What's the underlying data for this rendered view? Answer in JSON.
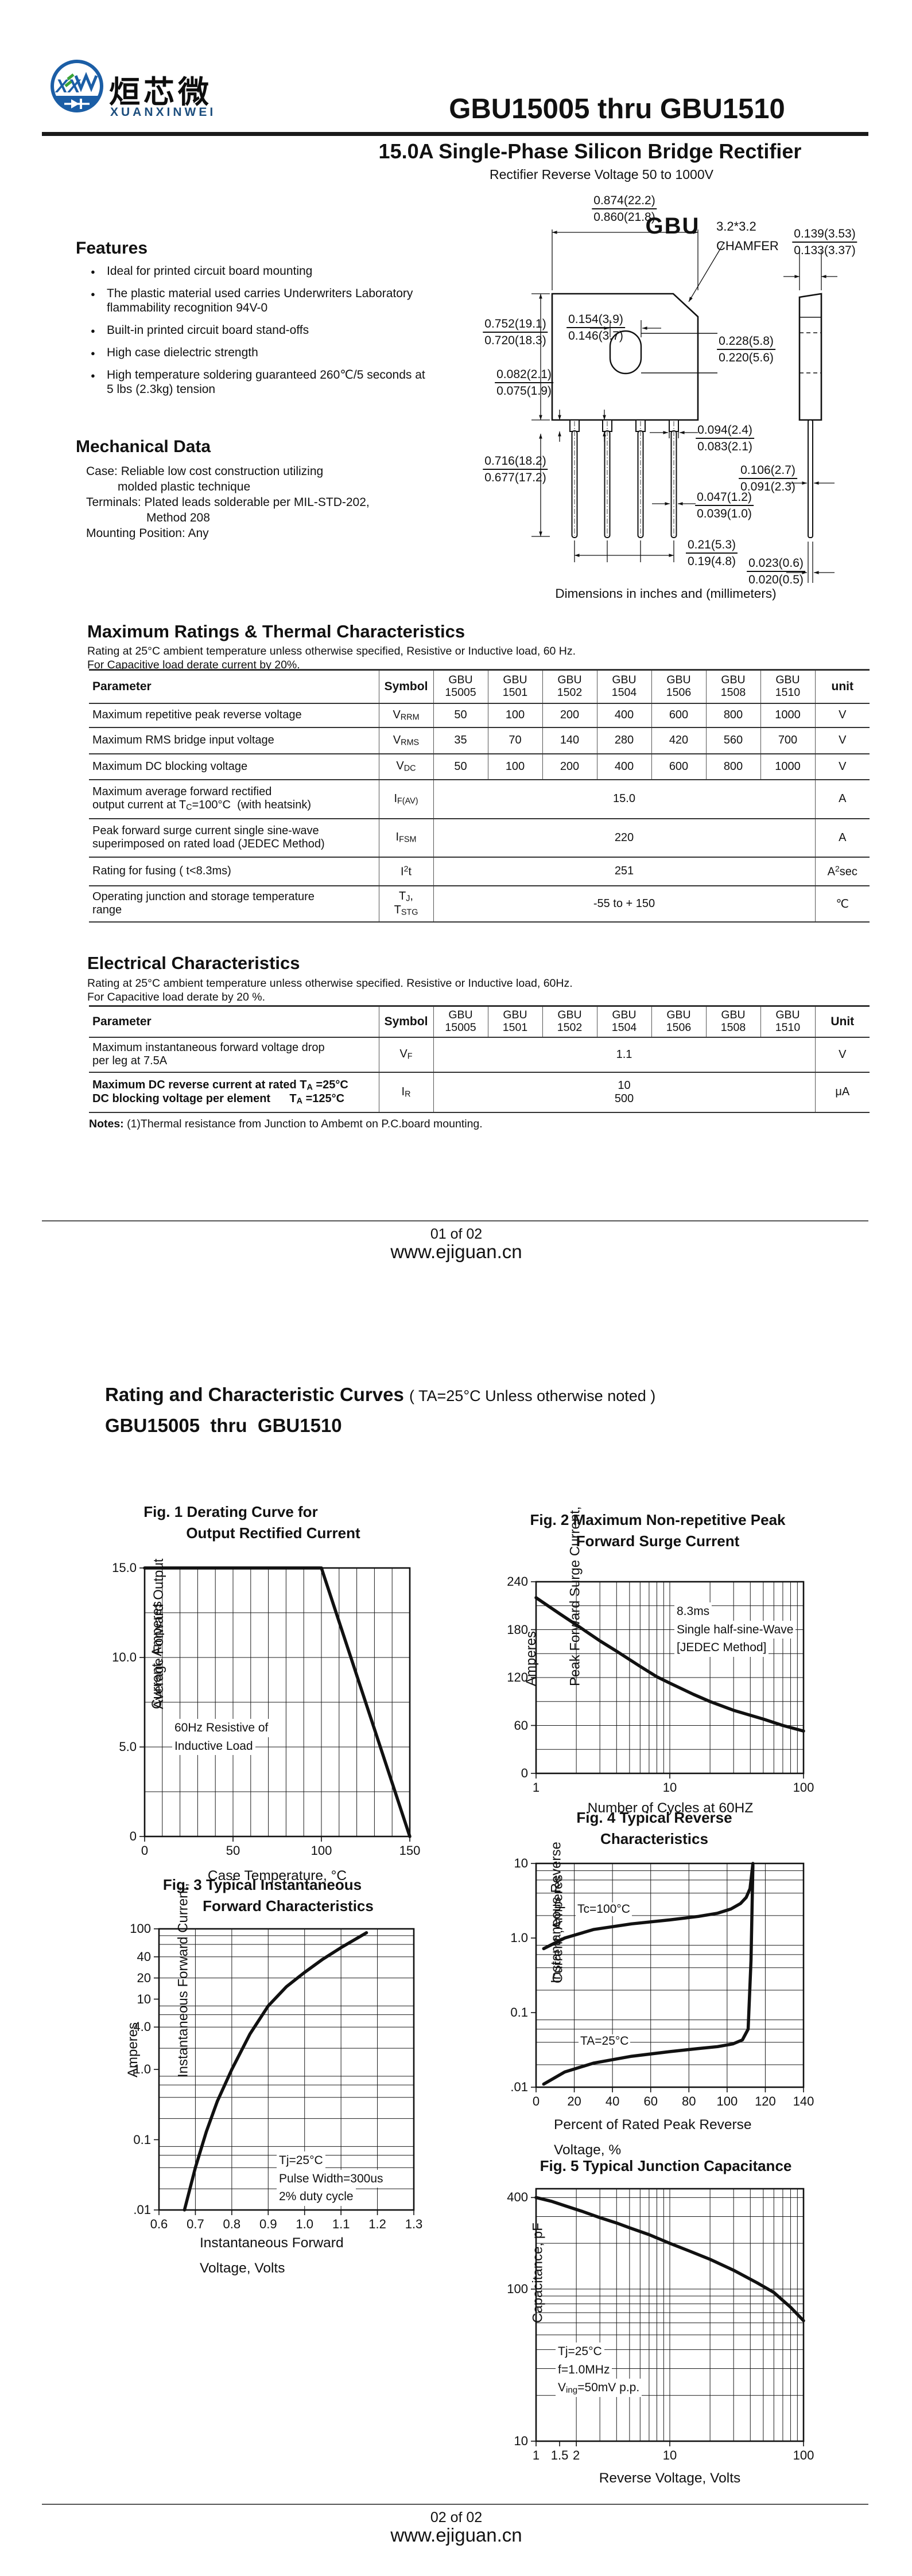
{
  "header": {
    "brand_cn": "烜芯微",
    "brand_en": "XUANXINWEI",
    "part_range": "GBU15005 thru GBU1510",
    "product_title": "15.0A Single-Phase Silicon Bridge Rectifier",
    "product_subtitle": "Rectifier Reverse Voltage 50 to 1000V",
    "logo_blue": "#1b5ea6",
    "logo_green": "#3aa337"
  },
  "features": {
    "heading": "Features",
    "items": [
      "Ideal for printed circuit  board mounting",
      "The plastic material used carries Underwriters Laboratory flammability recognition 94V-0",
      "Built-in printed circuit board stand-offs",
      "High case dielectric strength",
      "High temperature soldering guaranteed 260℃/5 seconds at 5 lbs (2.3kg) tension"
    ]
  },
  "mechanical": {
    "heading": "Mechanical Data",
    "lines": [
      "Case: Reliable low cost construction utilizing",
      "molded plastic technique",
      "Terminals: Plated leads solderable per MIL-STD-202,",
      "Method 208",
      "Mounting Position: Any"
    ]
  },
  "package": {
    "name": "GBU",
    "caption": "Dimensions in inches and (millimeters)",
    "chamfer_line1": "3.2*3.2",
    "chamfer_line2": "CHAMFER",
    "dims": [
      {
        "id": "width",
        "top": "0.874(22.2)",
        "bottom": "0.860(21.8)"
      },
      {
        "id": "side_w",
        "top": "0.139(3.53)",
        "bottom": "0.133(3.37)"
      },
      {
        "id": "hole_x",
        "top": "0.154(3.9)",
        "bottom": "0.146(3.7)"
      },
      {
        "id": "body_h",
        "top": "0.752(19.1)",
        "bottom": "0.720(18.3)"
      },
      {
        "id": "hole_h",
        "top": "0.228(5.8)",
        "bottom": "0.220(5.6)"
      },
      {
        "id": "standoff",
        "top": "0.082(2.1)",
        "bottom": "0.075(1.9)"
      },
      {
        "id": "lead_len",
        "top": "0.716(18.2)",
        "bottom": "0.677(17.2)"
      },
      {
        "id": "shoulder_w",
        "top": "0.094(2.4)",
        "bottom": "0.083(2.1)"
      },
      {
        "id": "side_t",
        "top": "0.106(2.7)",
        "bottom": "0.091(2.3)"
      },
      {
        "id": "lead_w",
        "top": "0.047(1.2)",
        "bottom": "0.039(1.0)"
      },
      {
        "id": "pitch",
        "top": "0.21(5.3)",
        "bottom": "0.19(4.8)"
      },
      {
        "id": "tab_t",
        "top": "0.023(0.6)",
        "bottom": "0.020(0.5)"
      }
    ]
  },
  "max_ratings": {
    "heading": "Maximum Ratings & Thermal Characteristics",
    "note1": "Rating at 25°C ambient temperature unless otherwise specified, Resistive or Inductive load, 60 Hz.",
    "note2": "For Capacitive load derate current by 20%.",
    "param_header": "Parameter",
    "symbol_header": "Symbol",
    "unit_header": "unit",
    "model_prefix": "GBU",
    "models": [
      "15005",
      "1501",
      "1502",
      "1504",
      "1506",
      "1508",
      "1510"
    ],
    "rows": [
      {
        "param": "Maximum repetitive peak reverse voltage",
        "symbol": "V_{RRM}",
        "values": [
          "50",
          "100",
          "200",
          "400",
          "600",
          "800",
          "1000"
        ],
        "unit": "V"
      },
      {
        "param": "Maximum RMS bridge input voltage",
        "symbol": "V_{RMS}",
        "values": [
          "35",
          "70",
          "140",
          "280",
          "420",
          "560",
          "700"
        ],
        "unit": "V"
      },
      {
        "param": "Maximum DC blocking voltage",
        "symbol": "V_{DC}",
        "values": [
          "50",
          "100",
          "200",
          "400",
          "600",
          "800",
          "1000"
        ],
        "unit": "V"
      },
      {
        "param": "Maximum average forward rectified\noutput current at T_{C}=100°C  (with heatsink)",
        "symbol": "I_{F(AV)}",
        "span": "15.0",
        "unit": "A"
      },
      {
        "param": "Peak forward surge current single sine-wave\nsuperimposed on rated load (JEDEC Method)",
        "symbol": "I_{FSM}",
        "span": "220",
        "unit": "A"
      },
      {
        "param": "Rating for fusing ( t<8.3ms)",
        "symbol": "I^{2}t",
        "span": "251",
        "unit": "A^{2}sec"
      },
      {
        "param": "Operating junction and storage temperature\nrange",
        "symbol": "T_{J},\nT_{STG}",
        "span": "-55 to + 150",
        "unit": "℃"
      }
    ]
  },
  "electrical": {
    "heading": "Electrical Characteristics",
    "note1": "Rating at 25°C ambient temperature unless otherwise specified. Resistive or Inductive load, 60Hz.",
    "note2": "For Capacitive load derate by 20 %.",
    "param_header": "Parameter",
    "symbol_header": "Symbol",
    "unit_header": "Unit",
    "model_prefix": "GBU",
    "models": [
      "15005",
      "1501",
      "1502",
      "1504",
      "1506",
      "1508",
      "1510"
    ],
    "rows": [
      {
        "param": "Maximum instantaneous forward voltage drop\nper leg at 7.5A",
        "symbol": "V_{F}",
        "span": "1.1",
        "unit": "V"
      },
      {
        "param": "Maximum DC reverse current at rated T_{A} =25°C\nDC blocking voltage per element      T_{A} =125°C",
        "bold": true,
        "symbol": "I_{R}",
        "span": "10\n500",
        "unit": "μA"
      }
    ],
    "notes_prefix": "Notes:",
    "notes_text": " (1)Thermal resistance from Junction to Ambemt on P.C.board mounting."
  },
  "footer1": {
    "page": "01 of 02",
    "site": "www.ejiguan.cn"
  },
  "footer2": {
    "page": "02 of 02",
    "site": "www.ejiguan.cn"
  },
  "page2": {
    "heading": "Rating and Characteristic Curves",
    "heading_note": "( TA=25°C Unless otherwise noted )",
    "subheading": "GBU15005  thru  GBU1510"
  },
  "chart_data": [
    {
      "type": "line",
      "title1": "Fig. 1 Derating Curve for",
      "title2": "Output Rectified Current",
      "ylabel": [
        "Average Forward Output",
        "Current, Amperes"
      ],
      "xlabel": [
        "Case Temperature, °C"
      ],
      "xlim": [
        0,
        150
      ],
      "ylim": [
        0,
        15
      ],
      "xlog": false,
      "ylog": false,
      "xticks": [
        {
          "v": 0,
          "l": "0"
        },
        {
          "v": 50,
          "l": "50"
        },
        {
          "v": 100,
          "l": "100"
        },
        {
          "v": 150,
          "l": "150"
        }
      ],
      "yticks": [
        {
          "v": 0,
          "l": "0"
        },
        {
          "v": 5,
          "l": "5.0"
        },
        {
          "v": 10,
          "l": "10.0"
        },
        {
          "v": 15,
          "l": "15.0"
        }
      ],
      "annotation": [
        "60Hz Resistive of",
        "Inductive Load"
      ],
      "series": [
        {
          "name": "derating",
          "points": [
            [
              0,
              15
            ],
            [
              100,
              15
            ],
            [
              150,
              0
            ]
          ]
        }
      ]
    },
    {
      "type": "line",
      "title1": "Fig. 2 Maximum Non-repetitive Peak",
      "title2": "Forward Surge Current",
      "ylabel": [
        "Peak Forward Surge Current,",
        "Amperes"
      ],
      "xlabel": [
        "Number of Cycles at 60HZ"
      ],
      "xlim": [
        1,
        100
      ],
      "ylim": [
        0,
        240
      ],
      "xlog": true,
      "ylog": false,
      "xticks": [
        {
          "v": 1,
          "l": "1"
        },
        {
          "v": 10,
          "l": "10"
        },
        {
          "v": 100,
          "l": "100"
        }
      ],
      "yticks": [
        {
          "v": 0,
          "l": "0"
        },
        {
          "v": 60,
          "l": "60"
        },
        {
          "v": 120,
          "l": "120"
        },
        {
          "v": 180,
          "l": "180"
        },
        {
          "v": 240,
          "l": "240"
        }
      ],
      "annotation": [
        "8.3ms",
        "Single half-sine-Wave",
        "[JEDEC Method]"
      ],
      "series": [
        {
          "name": "surge",
          "points": [
            [
              1,
              220
            ],
            [
              1.5,
              200
            ],
            [
              2,
              186
            ],
            [
              3,
              166
            ],
            [
              4,
              153
            ],
            [
              6,
              134
            ],
            [
              8,
              121
            ],
            [
              10,
              113
            ],
            [
              15,
              99
            ],
            [
              20,
              90
            ],
            [
              30,
              79
            ],
            [
              50,
              68
            ],
            [
              70,
              60
            ],
            [
              100,
              53
            ]
          ]
        }
      ]
    },
    {
      "type": "line",
      "title1": "Fig. 3 Typical Instantaneous",
      "title2": "Forward Characteristics",
      "ylabel": [
        "Instantaneous Forward Current,",
        "Amperes"
      ],
      "xlabel": [
        "Instantaneous Forward",
        "Voltage, Volts"
      ],
      "xlim": [
        0.6,
        1.3
      ],
      "ylim": [
        0.01,
        100
      ],
      "xlog": false,
      "ylog": true,
      "xticks": [
        {
          "v": 0.6,
          "l": "0.6"
        },
        {
          "v": 0.7,
          "l": "0.7"
        },
        {
          "v": 0.8,
          "l": "0.8"
        },
        {
          "v": 0.9,
          "l": "0.9"
        },
        {
          "v": 1.0,
          "l": "1.0"
        },
        {
          "v": 1.1,
          "l": "1.1"
        },
        {
          "v": 1.2,
          "l": "1.2"
        },
        {
          "v": 1.3,
          "l": "1.3"
        }
      ],
      "yticks": [
        {
          "v": 100,
          "l": "100"
        },
        {
          "v": 40,
          "l": "40"
        },
        {
          "v": 20,
          "l": "20"
        },
        {
          "v": 10,
          "l": "10"
        },
        {
          "v": 4,
          "l": "4.0"
        },
        {
          "v": 1,
          "l": "1.0"
        },
        {
          "v": 0.1,
          "l": "0.1"
        },
        {
          "v": 0.01,
          "l": ".01"
        }
      ],
      "annotation": [
        "Tj=25°C",
        "Pulse Width=300us",
        "2% duty cycle"
      ],
      "series": [
        {
          "name": "vf-if",
          "points": [
            [
              0.67,
              0.01
            ],
            [
              0.7,
              0.04
            ],
            [
              0.73,
              0.13
            ],
            [
              0.76,
              0.35
            ],
            [
              0.8,
              1.0
            ],
            [
              0.85,
              3.2
            ],
            [
              0.9,
              8
            ],
            [
              0.95,
              15
            ],
            [
              1.0,
              24
            ],
            [
              1.05,
              37
            ],
            [
              1.1,
              54
            ],
            [
              1.17,
              88
            ]
          ]
        }
      ]
    },
    {
      "type": "line",
      "title1": "Fig. 4 Typical Reverse",
      "title2": "Characteristics",
      "ylabel": [
        "Instantaneous Reverse",
        "Current ,Amperes"
      ],
      "xlabel": [
        "Percent of Rated Peak Reverse",
        "Voltage, %"
      ],
      "xlim": [
        0,
        140
      ],
      "ylim": [
        0.01,
        10
      ],
      "xlog": false,
      "ylog": true,
      "xticks": [
        {
          "v": 0,
          "l": "0"
        },
        {
          "v": 20,
          "l": "20"
        },
        {
          "v": 40,
          "l": "40"
        },
        {
          "v": 60,
          "l": "60"
        },
        {
          "v": 80,
          "l": "80"
        },
        {
          "v": 100,
          "l": "100"
        },
        {
          "v": 120,
          "l": "120"
        },
        {
          "v": 140,
          "l": "140"
        }
      ],
      "yticks": [
        {
          "v": 10,
          "l": "10"
        },
        {
          "v": 1,
          "l": "1.0"
        },
        {
          "v": 0.1,
          "l": "0.1"
        },
        {
          "v": 0.01,
          "l": ".01"
        }
      ],
      "annotation": [],
      "series": [
        {
          "name": "Tc=100°C",
          "points": [
            [
              4,
              0.72
            ],
            [
              15,
              1.0
            ],
            [
              30,
              1.3
            ],
            [
              50,
              1.55
            ],
            [
              70,
              1.75
            ],
            [
              85,
              1.95
            ],
            [
              95,
              2.15
            ],
            [
              102,
              2.45
            ],
            [
              107,
              2.9
            ],
            [
              110,
              3.5
            ],
            [
              112,
              4.6
            ],
            [
              113.5,
              10
            ]
          ]
        },
        {
          "name": "TA=25°C",
          "points": [
            [
              4,
              0.011
            ],
            [
              15,
              0.016
            ],
            [
              30,
              0.021
            ],
            [
              50,
              0.026
            ],
            [
              70,
              0.03
            ],
            [
              85,
              0.033
            ],
            [
              95,
              0.035
            ],
            [
              103,
              0.038
            ],
            [
              108,
              0.043
            ],
            [
              111,
              0.06
            ],
            [
              112.5,
              0.5
            ],
            [
              113.5,
              9.5
            ]
          ]
        }
      ]
    },
    {
      "type": "line",
      "title1": "Fig. 5 Typical Junction Capacitance",
      "title2": "",
      "ylabel": [
        "Capacitance, pF"
      ],
      "xlabel": [
        "Reverse Voltage, Volts"
      ],
      "xlim": [
        1,
        100
      ],
      "ylim": [
        10,
        457
      ],
      "xlog": true,
      "ylog": true,
      "xticks": [
        {
          "v": 1,
          "l": "1"
        },
        {
          "v": 1.5,
          "l": "1.5"
        },
        {
          "v": 2,
          "l": "2"
        },
        {
          "v": 10,
          "l": "10"
        },
        {
          "v": 100,
          "l": "100"
        }
      ],
      "yticks": [
        {
          "v": 400,
          "l": "400"
        },
        {
          "v": 100,
          "l": "100"
        },
        {
          "v": 10,
          "l": "10"
        }
      ],
      "annotation": [
        "Tj=25°C",
        "f=1.0MHz",
        "V_{ing}=50mV p.p."
      ],
      "series": [
        {
          "name": "cj",
          "points": [
            [
              1,
              400
            ],
            [
              1.3,
              378
            ],
            [
              1.7,
              350
            ],
            [
              2.2,
              325
            ],
            [
              3,
              295
            ],
            [
              4,
              272
            ],
            [
              5,
              253
            ],
            [
              7,
              228
            ],
            [
              10,
              200
            ],
            [
              14,
              178
            ],
            [
              20,
              157
            ],
            [
              30,
              133
            ],
            [
              45,
              110
            ],
            [
              60,
              95
            ],
            [
              80,
              76
            ],
            [
              100,
              62
            ]
          ]
        }
      ]
    }
  ]
}
